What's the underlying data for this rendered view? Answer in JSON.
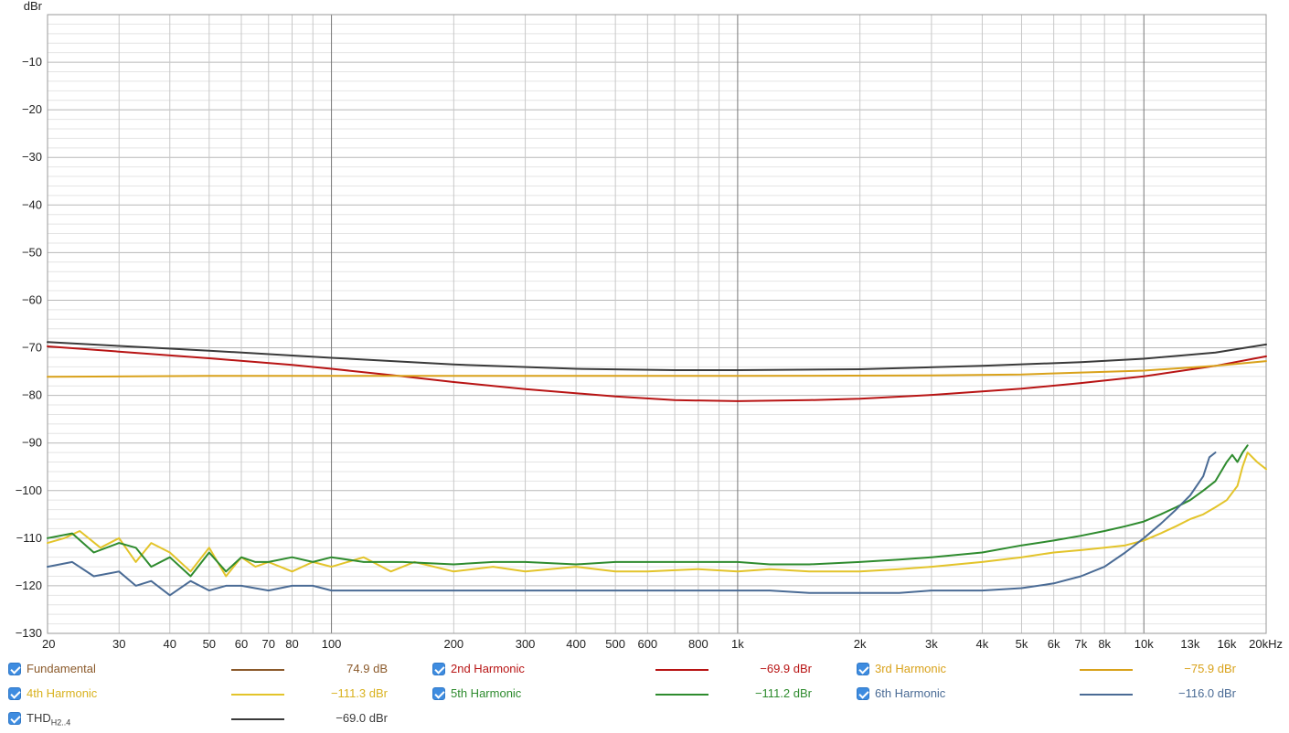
{
  "chart_data": {
    "type": "line",
    "ylabel": "dBr",
    "x_scale": "log",
    "xlim": [
      20,
      20000
    ],
    "ylim": [
      -130,
      0
    ],
    "x_ticks": [
      {
        "v": 20,
        "label": "20"
      },
      {
        "v": 30,
        "label": "30"
      },
      {
        "v": 40,
        "label": "40"
      },
      {
        "v": 50,
        "label": "50"
      },
      {
        "v": 60,
        "label": "60"
      },
      {
        "v": 70,
        "label": "70"
      },
      {
        "v": 80,
        "label": "80"
      },
      {
        "v": 100,
        "label": "100"
      },
      {
        "v": 200,
        "label": "200"
      },
      {
        "v": 300,
        "label": "300"
      },
      {
        "v": 400,
        "label": "400"
      },
      {
        "v": 500,
        "label": "500"
      },
      {
        "v": 600,
        "label": "600"
      },
      {
        "v": 800,
        "label": "800"
      },
      {
        "v": 1000,
        "label": "1k"
      },
      {
        "v": 2000,
        "label": "2k"
      },
      {
        "v": 3000,
        "label": "3k"
      },
      {
        "v": 4000,
        "label": "4k"
      },
      {
        "v": 5000,
        "label": "5k"
      },
      {
        "v": 6000,
        "label": "6k"
      },
      {
        "v": 7000,
        "label": "7k"
      },
      {
        "v": 8000,
        "label": "8k"
      },
      {
        "v": 10000,
        "label": "10k"
      },
      {
        "v": 13000,
        "label": "13k"
      },
      {
        "v": 16000,
        "label": "16k"
      },
      {
        "v": 20000,
        "label": "20kHz"
      }
    ],
    "y_ticks": [
      {
        "v": -10,
        "label": "−10"
      },
      {
        "v": -20,
        "label": "−20"
      },
      {
        "v": -30,
        "label": "−30"
      },
      {
        "v": -40,
        "label": "−40"
      },
      {
        "v": -50,
        "label": "−50"
      },
      {
        "v": -60,
        "label": "−60"
      },
      {
        "v": -70,
        "label": "−70"
      },
      {
        "v": -80,
        "label": "−80"
      },
      {
        "v": -90,
        "label": "−90"
      },
      {
        "v": -100,
        "label": "−100"
      },
      {
        "v": -110,
        "label": "−110"
      },
      {
        "v": -120,
        "label": "−120"
      },
      {
        "v": -130,
        "label": "−130"
      }
    ],
    "grid": true,
    "series": [
      {
        "name": "THD",
        "color": "#3a3a3a",
        "x": [
          20,
          30,
          50,
          100,
          200,
          400,
          700,
          1000,
          2000,
          4000,
          7000,
          10000,
          15000,
          20000
        ],
        "y": [
          -68.8,
          -69.6,
          -70.6,
          -72.1,
          -73.5,
          -74.4,
          -74.7,
          -74.7,
          -74.5,
          -73.8,
          -73.0,
          -72.3,
          -71.0,
          -69.3
        ]
      },
      {
        "name": "2nd Harmonic",
        "color": "#b81414",
        "x": [
          20,
          30,
          50,
          80,
          100,
          150,
          200,
          300,
          500,
          700,
          1000,
          1500,
          2000,
          3000,
          5000,
          7000,
          10000,
          15000,
          20000
        ],
        "y": [
          -69.7,
          -70.8,
          -72.2,
          -73.6,
          -74.4,
          -76.0,
          -77.2,
          -78.7,
          -80.2,
          -81.0,
          -81.2,
          -81.0,
          -80.7,
          -79.9,
          -78.6,
          -77.4,
          -76.0,
          -73.8,
          -71.8
        ]
      },
      {
        "name": "3rd Harmonic",
        "color": "#d9a21b",
        "x": [
          20,
          50,
          100,
          300,
          1000,
          3000,
          5000,
          7000,
          10000,
          15000,
          20000
        ],
        "y": [
          -76.1,
          -75.9,
          -75.9,
          -75.9,
          -75.9,
          -75.8,
          -75.6,
          -75.2,
          -74.8,
          -73.8,
          -72.8
        ]
      },
      {
        "name": "4th Harmonic",
        "color": "#e3c42a",
        "x": [
          20,
          22,
          24,
          27,
          30,
          33,
          36,
          40,
          45,
          50,
          55,
          60,
          65,
          70,
          80,
          90,
          100,
          120,
          140,
          160,
          200,
          250,
          300,
          400,
          500,
          600,
          800,
          1000,
          1200,
          1500,
          2000,
          2500,
          3000,
          4000,
          5000,
          6000,
          7000,
          8000,
          9000,
          10000,
          11000,
          12000,
          13000,
          14000,
          15000,
          16000,
          17000,
          17500,
          18000,
          19000,
          20000
        ],
        "y": [
          -111,
          -110,
          -108.5,
          -112,
          -110,
          -115,
          -111,
          -113,
          -117,
          -112,
          -118,
          -114,
          -116,
          -115,
          -117,
          -115,
          -116,
          -114,
          -117,
          -115,
          -117,
          -116,
          -117,
          -116,
          -117,
          -117,
          -116.5,
          -117,
          -116.5,
          -117,
          -117,
          -116.5,
          -116,
          -115,
          -114,
          -113,
          -112.5,
          -112,
          -111.5,
          -110.5,
          -109,
          -107.5,
          -106,
          -105,
          -103.5,
          -102,
          -99,
          -95,
          -92,
          -94,
          -95.5
        ]
      },
      {
        "name": "5th Harmonic",
        "color": "#2e8b2e",
        "x": [
          20,
          23,
          26,
          30,
          33,
          36,
          40,
          45,
          50,
          55,
          60,
          65,
          70,
          80,
          90,
          100,
          120,
          150,
          200,
          250,
          300,
          400,
          500,
          600,
          800,
          1000,
          1200,
          1500,
          2000,
          2500,
          3000,
          4000,
          5000,
          6000,
          7000,
          8000,
          9000,
          10000,
          11000,
          12000,
          13000,
          14000,
          15000,
          16000,
          16500,
          17000,
          17500,
          18000
        ],
        "y": [
          -110,
          -109,
          -113,
          -111,
          -112,
          -116,
          -114,
          -118,
          -113,
          -117,
          -114,
          -115,
          -115,
          -114,
          -115,
          -114,
          -115,
          -115,
          -115.5,
          -115,
          -115,
          -115.5,
          -115,
          -115,
          -115,
          -115,
          -115.5,
          -115.5,
          -115,
          -114.5,
          -114,
          -113,
          -111.5,
          -110.5,
          -109.5,
          -108.5,
          -107.5,
          -106.5,
          -105,
          -103.5,
          -102,
          -100,
          -98,
          -94,
          -92.5,
          -94,
          -92,
          -90.5
        ]
      },
      {
        "name": "6th Harmonic",
        "color": "#4a6b95",
        "x": [
          20,
          23,
          26,
          30,
          33,
          36,
          40,
          45,
          50,
          55,
          60,
          70,
          80,
          90,
          100,
          120,
          150,
          200,
          250,
          300,
          400,
          500,
          600,
          800,
          1000,
          1200,
          1500,
          2000,
          2500,
          3000,
          4000,
          5000,
          6000,
          7000,
          8000,
          9000,
          10000,
          11000,
          12000,
          13000,
          14000,
          14500,
          15000
        ],
        "y": [
          -116,
          -115,
          -118,
          -117,
          -120,
          -119,
          -122,
          -119,
          -121,
          -120,
          -120,
          -121,
          -120,
          -120,
          -121,
          -121,
          -121,
          -121,
          -121,
          -121,
          -121,
          -121,
          -121,
          -121,
          -121,
          -121,
          -121.5,
          -121.5,
          -121.5,
          -121,
          -121,
          -120.5,
          -119.5,
          -118,
          -116,
          -113,
          -110,
          -107,
          -104,
          -101,
          -97,
          -93,
          -92
        ]
      }
    ]
  },
  "legend": {
    "items": [
      {
        "label": "Fundamental",
        "value": "74.9 dB",
        "color": "#8b5a2b"
      },
      {
        "label": "2nd Harmonic",
        "value": "−69.9 dBr",
        "color": "#b81414"
      },
      {
        "label": "3rd Harmonic",
        "value": "−75.9 dBr",
        "color": "#d9a21b"
      },
      {
        "label": "4th Harmonic",
        "value": "−111.3 dBr",
        "color": "#e3c42a"
      },
      {
        "label": "5th Harmonic",
        "value": "−111.2 dBr",
        "color": "#2e8b2e"
      },
      {
        "label": "6th Harmonic",
        "value": "−116.0 dBr",
        "color": "#4a6b95"
      },
      {
        "label": "THD",
        "label_sub": "H2..4",
        "value": "−69.0 dBr",
        "color": "#3a3a3a"
      }
    ]
  }
}
